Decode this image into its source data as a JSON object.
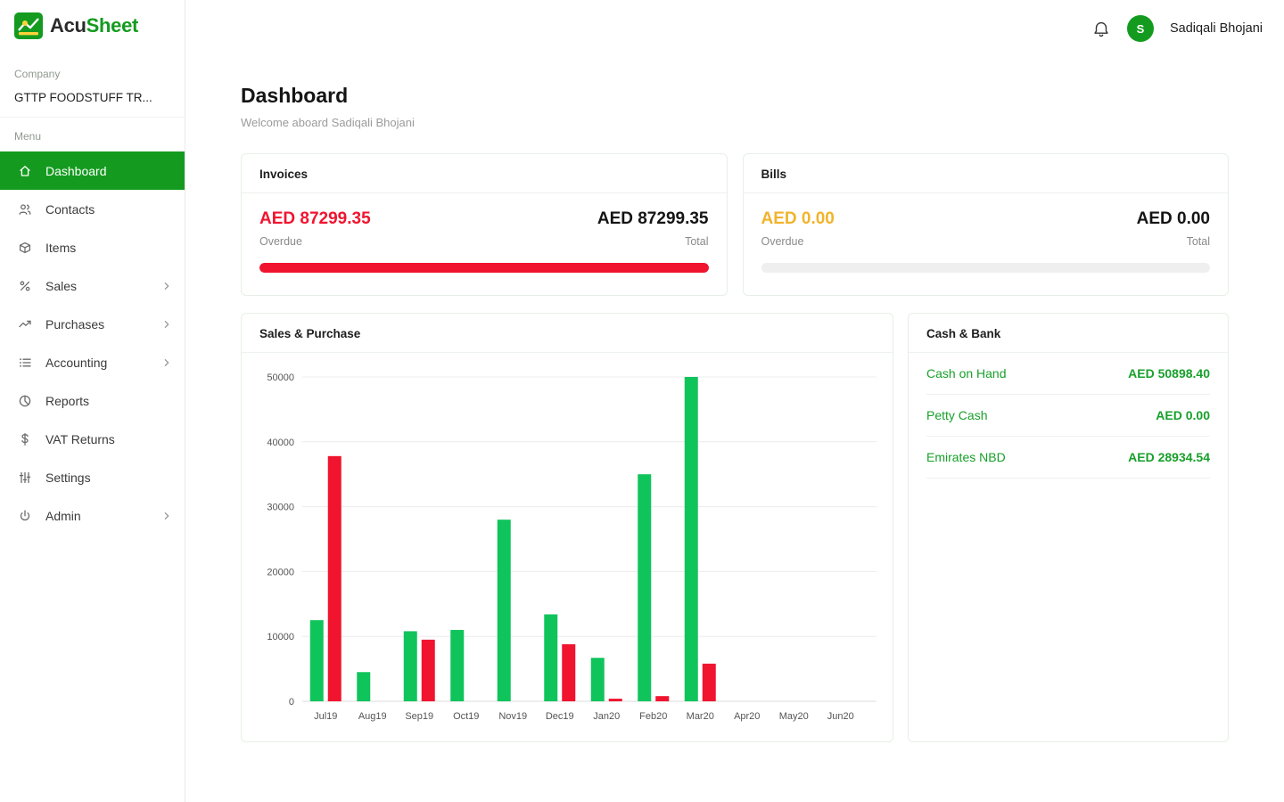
{
  "colors": {
    "brand_green": "#149b1f",
    "chart_green": "#10c45c",
    "red": "#f0142f",
    "amber": "#f2b32b",
    "cash_green": "#17a02a"
  },
  "app": {
    "name_prefix": "Acu",
    "name_suffix": "Sheet"
  },
  "topbar": {
    "user_name": "Sadiqali Bhojani",
    "avatar_initial": "S"
  },
  "sidebar": {
    "company_label": "Company",
    "company_name": "GTTP FOODSTUFF TR...",
    "menu_label": "Menu",
    "items": [
      {
        "label": "Dashboard",
        "icon": "home",
        "active": true,
        "chevron": false
      },
      {
        "label": "Contacts",
        "icon": "users",
        "active": false,
        "chevron": false
      },
      {
        "label": "Items",
        "icon": "box",
        "active": false,
        "chevron": false
      },
      {
        "label": "Sales",
        "icon": "percent",
        "active": false,
        "chevron": true
      },
      {
        "label": "Purchases",
        "icon": "trend",
        "active": false,
        "chevron": true
      },
      {
        "label": "Accounting",
        "icon": "list",
        "active": false,
        "chevron": true
      },
      {
        "label": "Reports",
        "icon": "pie",
        "active": false,
        "chevron": false
      },
      {
        "label": "VAT Returns",
        "icon": "dollar",
        "active": false,
        "chevron": false
      },
      {
        "label": "Settings",
        "icon": "sliders",
        "active": false,
        "chevron": false
      },
      {
        "label": "Admin",
        "icon": "power",
        "active": false,
        "chevron": true
      }
    ]
  },
  "main": {
    "title": "Dashboard",
    "subtitle": "Welcome aboard Sadiqali Bhojani",
    "invoices": {
      "title": "Invoices",
      "overdue_value": "AED 87299.35",
      "overdue_label": "Overdue",
      "total_value": "AED 87299.35",
      "total_label": "Total",
      "progress_pct": 100
    },
    "bills": {
      "title": "Bills",
      "overdue_value": "AED 0.00",
      "overdue_label": "Overdue",
      "total_value": "AED 0.00",
      "total_label": "Total",
      "progress_pct": 0
    },
    "cash_bank": {
      "title": "Cash & Bank",
      "rows": [
        {
          "label": "Cash on Hand",
          "value": "AED 50898.40"
        },
        {
          "label": "Petty Cash",
          "value": "AED 0.00"
        },
        {
          "label": "Emirates NBD",
          "value": "AED 28934.54"
        }
      ]
    }
  },
  "chart_data": {
    "type": "bar",
    "title": "Sales & Purchase",
    "categories": [
      "Jul19",
      "Aug19",
      "Sep19",
      "Oct19",
      "Nov19",
      "Dec19",
      "Jan20",
      "Feb20",
      "Mar20",
      "Apr20",
      "May20",
      "Jun20"
    ],
    "series": [
      {
        "name": "Sales",
        "color": "#10c45c",
        "values": [
          12500,
          4500,
          10800,
          11000,
          28000,
          13400,
          6700,
          35000,
          50000,
          0,
          0,
          0
        ]
      },
      {
        "name": "Purchase",
        "color": "#f0142f",
        "values": [
          37800,
          0,
          9500,
          0,
          0,
          8800,
          400,
          800,
          5800,
          0,
          0,
          0
        ]
      }
    ],
    "xlabel": "",
    "ylabel": "",
    "ylim": [
      0,
      50000
    ],
    "yticks": [
      0,
      10000,
      20000,
      30000,
      40000,
      50000
    ],
    "grid": true,
    "legend_position": "none"
  }
}
